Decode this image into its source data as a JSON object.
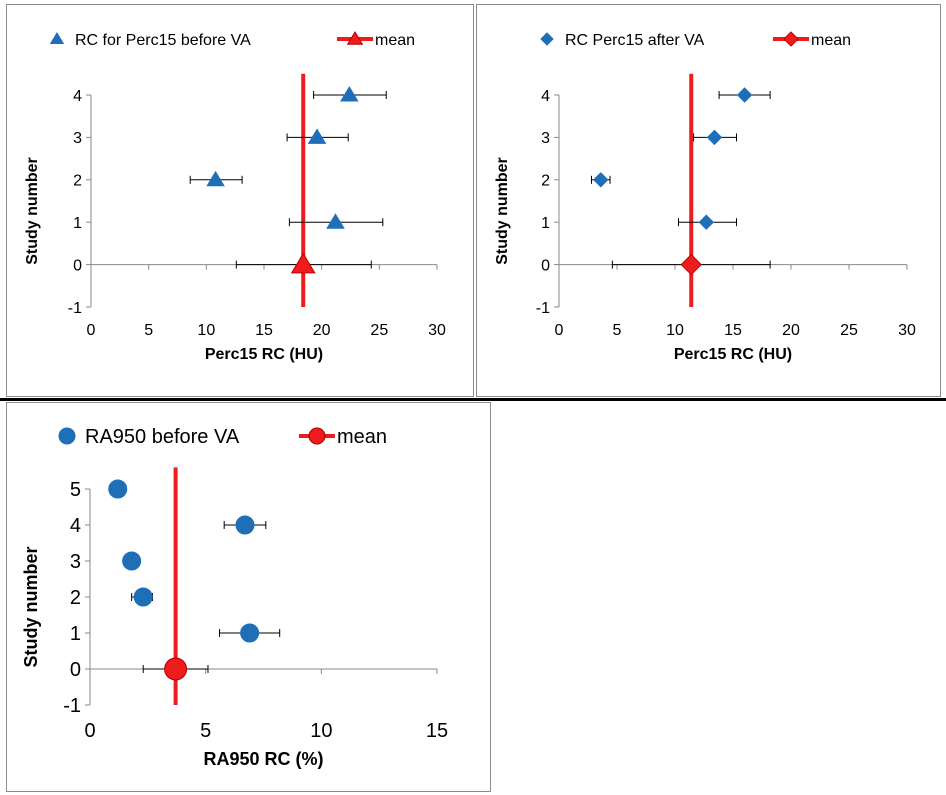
{
  "chart_data": [
    {
      "type": "scatter",
      "xlabel": "Perc15 RC (HU)",
      "ylabel": "Study number",
      "xlim": [
        0,
        30
      ],
      "ylim": [
        -1,
        4
      ],
      "xticks": [
        0,
        5,
        10,
        15,
        20,
        25,
        30
      ],
      "yticks": [
        -1,
        0,
        1,
        2,
        3,
        4
      ],
      "grid": false,
      "legend_position": "top",
      "series": [
        {
          "name": "RC for Perc15 before VA",
          "marker": "triangle",
          "color": "#1f6fb8",
          "points": [
            {
              "y": 1,
              "x": 21.2,
              "err_low": 17.2,
              "err_high": 25.3
            },
            {
              "y": 2,
              "x": 10.8,
              "err_low": 8.6,
              "err_high": 13.1
            },
            {
              "y": 3,
              "x": 19.6,
              "err_low": 17.0,
              "err_high": 22.3
            },
            {
              "y": 4,
              "x": 22.4,
              "err_low": 19.3,
              "err_high": 25.6
            }
          ]
        },
        {
          "name": "mean",
          "marker": "triangle",
          "color": "#ee1c1c",
          "points": [
            {
              "y": 0,
              "x": 18.4,
              "err_low": 12.6,
              "err_high": 24.3
            }
          ],
          "mean_line": {
            "x": 18.4,
            "y_from": -1,
            "y_to": 4.5
          }
        }
      ]
    },
    {
      "type": "scatter",
      "xlabel": "Perc15 RC (HU)",
      "ylabel": "Study number",
      "xlim": [
        0,
        30
      ],
      "ylim": [
        -1,
        4
      ],
      "xticks": [
        0,
        5,
        10,
        15,
        20,
        25,
        30
      ],
      "yticks": [
        -1,
        0,
        1,
        2,
        3,
        4
      ],
      "grid": false,
      "legend_position": "top",
      "series": [
        {
          "name": "RC Perc15 after VA",
          "marker": "diamond",
          "color": "#1f6fb8",
          "points": [
            {
              "y": 1,
              "x": 12.7,
              "err_low": 10.3,
              "err_high": 15.3
            },
            {
              "y": 2,
              "x": 3.6,
              "err_low": 2.8,
              "err_high": 4.4
            },
            {
              "y": 3,
              "x": 13.4,
              "err_low": 11.6,
              "err_high": 15.3
            },
            {
              "y": 4,
              "x": 16.0,
              "err_low": 13.8,
              "err_high": 18.2
            }
          ]
        },
        {
          "name": "mean",
          "marker": "diamond",
          "color": "#ee1c1c",
          "points": [
            {
              "y": 0,
              "x": 11.4,
              "err_low": 4.6,
              "err_high": 18.2
            }
          ],
          "mean_line": {
            "x": 11.4,
            "y_from": -1,
            "y_to": 4.5
          }
        }
      ]
    },
    {
      "type": "scatter",
      "xlabel": "RA950 RC (%)",
      "ylabel": "Study number",
      "xlim": [
        0,
        15
      ],
      "ylim": [
        -1,
        5
      ],
      "xticks": [
        0,
        5,
        10,
        15
      ],
      "yticks": [
        -1,
        0,
        1,
        2,
        3,
        4,
        5
      ],
      "grid": false,
      "legend_position": "top",
      "series": [
        {
          "name": "RA950 before VA",
          "marker": "circle",
          "color": "#1f6fb8",
          "points": [
            {
              "y": 1,
              "x": 6.9,
              "err_low": 5.6,
              "err_high": 8.2
            },
            {
              "y": 2,
              "x": 2.3,
              "err_low": 1.8,
              "err_high": 2.7
            },
            {
              "y": 3,
              "x": 1.8,
              "err_low": 1.5,
              "err_high": 2.1
            },
            {
              "y": 4,
              "x": 6.7,
              "err_low": 5.8,
              "err_high": 7.6
            },
            {
              "y": 5,
              "x": 1.2,
              "err_low": 1.2,
              "err_high": 1.2
            }
          ]
        },
        {
          "name": "mean",
          "marker": "circle",
          "color": "#ee1c1c",
          "points": [
            {
              "y": 0,
              "x": 3.7,
              "err_low": 2.3,
              "err_high": 5.1
            }
          ],
          "mean_line": {
            "x": 3.7,
            "y_from": -1,
            "y_to": 5.6
          }
        }
      ]
    }
  ]
}
